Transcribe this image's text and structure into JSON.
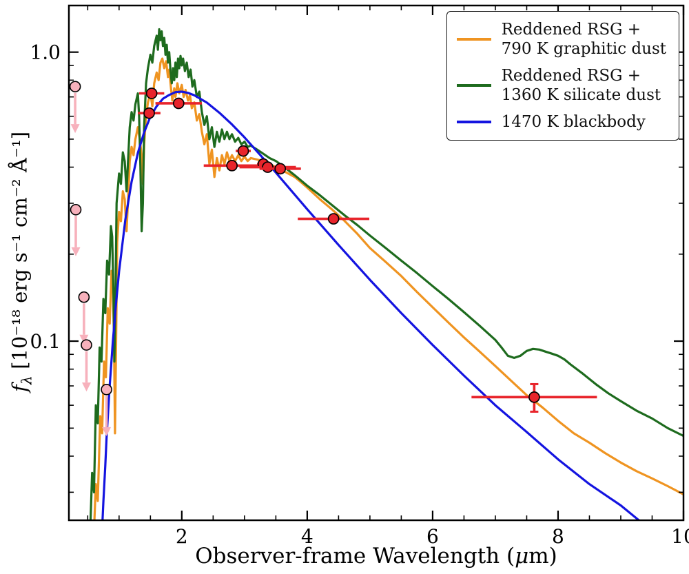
{
  "chart_data": {
    "type": "line",
    "xlabel_parts": {
      "pre": "Observer-frame Wavelength (",
      "mu": "μ",
      "post": "m)"
    },
    "ylabel_parts": {
      "f": "f",
      "sub": "λ",
      "rest": " [10⁻¹⁸ erg s⁻¹ cm⁻² Å⁻¹]"
    },
    "x_range": [
      0.2,
      10
    ],
    "y_range_log": [
      0.024,
      1.45
    ],
    "x_ticks": {
      "major": [
        2,
        4,
        6,
        8,
        10
      ],
      "labels": [
        "2",
        "4",
        "6",
        "8",
        "10"
      ],
      "minor": [
        0.5,
        1,
        1.5,
        2.5,
        3,
        3.5,
        4.5,
        5,
        5.5,
        6.5,
        7,
        7.5,
        8.5,
        9,
        9.5
      ]
    },
    "y_ticks": {
      "major": [
        1.0,
        0.1
      ],
      "labels": [
        "1.0",
        "0.1"
      ],
      "minor": [
        0.03,
        0.04,
        0.05,
        0.06,
        0.07,
        0.08,
        0.09,
        0.2,
        0.3,
        0.4,
        0.5,
        0.6,
        0.7,
        0.8,
        0.9
      ]
    },
    "legend": [
      {
        "label": "Reddened RSG +\n790 K graphitic dust",
        "color": "#ef9421"
      },
      {
        "label": "Reddened RSG +\n1360 K silicate dust",
        "color": "#1e6b1e"
      },
      {
        "label": "1470 K blackbody",
        "color": "#1414e0"
      }
    ],
    "series": [
      {
        "name": "reddened-rsg-790K-graphitic-dust",
        "color": "#ef9421",
        "points": [
          [
            0.6,
            0.022
          ],
          [
            0.63,
            0.032
          ],
          [
            0.66,
            0.028
          ],
          [
            0.7,
            0.055
          ],
          [
            0.73,
            0.048
          ],
          [
            0.76,
            0.085
          ],
          [
            0.79,
            0.075
          ],
          [
            0.82,
            0.13
          ],
          [
            0.85,
            0.115
          ],
          [
            0.88,
            0.175
          ],
          [
            0.9,
            0.16
          ],
          [
            0.92,
            0.1
          ],
          [
            0.935,
            0.048
          ],
          [
            0.95,
            0.09
          ],
          [
            0.97,
            0.22
          ],
          [
            1.0,
            0.28
          ],
          [
            1.03,
            0.26
          ],
          [
            1.06,
            0.33
          ],
          [
            1.09,
            0.31
          ],
          [
            1.12,
            0.24
          ],
          [
            1.14,
            0.3
          ],
          [
            1.17,
            0.42
          ],
          [
            1.2,
            0.47
          ],
          [
            1.23,
            0.44
          ],
          [
            1.26,
            0.5
          ],
          [
            1.3,
            0.55
          ],
          [
            1.33,
            0.5
          ],
          [
            1.36,
            0.44
          ],
          [
            1.38,
            0.35
          ],
          [
            1.4,
            0.48
          ],
          [
            1.43,
            0.6
          ],
          [
            1.46,
            0.67
          ],
          [
            1.5,
            0.72
          ],
          [
            1.53,
            0.65
          ],
          [
            1.56,
            0.78
          ],
          [
            1.6,
            0.85
          ],
          [
            1.63,
            0.8
          ],
          [
            1.66,
            0.92
          ],
          [
            1.69,
            0.95
          ],
          [
            1.72,
            0.88
          ],
          [
            1.75,
            0.93
          ],
          [
            1.78,
            0.82
          ],
          [
            1.8,
            0.87
          ],
          [
            1.83,
            0.74
          ],
          [
            1.85,
            0.68
          ],
          [
            1.88,
            0.75
          ],
          [
            1.9,
            0.7
          ],
          [
            1.93,
            0.78
          ],
          [
            1.96,
            0.72
          ],
          [
            2.0,
            0.77
          ],
          [
            2.03,
            0.7
          ],
          [
            2.06,
            0.74
          ],
          [
            2.1,
            0.68
          ],
          [
            2.13,
            0.71
          ],
          [
            2.16,
            0.64
          ],
          [
            2.2,
            0.67
          ],
          [
            2.24,
            0.58
          ],
          [
            2.28,
            0.61
          ],
          [
            2.32,
            0.53
          ],
          [
            2.36,
            0.48
          ],
          [
            2.4,
            0.52
          ],
          [
            2.44,
            0.41
          ],
          [
            2.48,
            0.46
          ],
          [
            2.52,
            0.37
          ],
          [
            2.56,
            0.43
          ],
          [
            2.6,
            0.39
          ],
          [
            2.64,
            0.44
          ],
          [
            2.68,
            0.41
          ],
          [
            2.72,
            0.45
          ],
          [
            2.76,
            0.42
          ],
          [
            2.8,
            0.44
          ],
          [
            2.85,
            0.42
          ],
          [
            2.9,
            0.44
          ],
          [
            2.95,
            0.42
          ],
          [
            3.0,
            0.435
          ],
          [
            3.05,
            0.42
          ],
          [
            3.1,
            0.43
          ],
          [
            3.2,
            0.425
          ],
          [
            3.3,
            0.42
          ],
          [
            3.4,
            0.41
          ],
          [
            3.5,
            0.4
          ],
          [
            3.6,
            0.39
          ],
          [
            3.7,
            0.38
          ],
          [
            3.8,
            0.37
          ],
          [
            3.9,
            0.355
          ],
          [
            4.0,
            0.34
          ],
          [
            4.2,
            0.31
          ],
          [
            4.4,
            0.285
          ],
          [
            4.6,
            0.26
          ],
          [
            4.8,
            0.235
          ],
          [
            5.0,
            0.21
          ],
          [
            5.25,
            0.188
          ],
          [
            5.5,
            0.168
          ],
          [
            5.75,
            0.148
          ],
          [
            6.0,
            0.131
          ],
          [
            6.25,
            0.116
          ],
          [
            6.5,
            0.103
          ],
          [
            6.75,
            0.092
          ],
          [
            7.0,
            0.082
          ],
          [
            7.25,
            0.073
          ],
          [
            7.5,
            0.065
          ],
          [
            7.75,
            0.059
          ],
          [
            8.0,
            0.053
          ],
          [
            8.25,
            0.048
          ],
          [
            8.5,
            0.0445
          ],
          [
            8.75,
            0.041
          ],
          [
            9.0,
            0.038
          ],
          [
            9.25,
            0.0355
          ],
          [
            9.5,
            0.0335
          ],
          [
            9.75,
            0.0315
          ],
          [
            10.0,
            0.0295
          ]
        ]
      },
      {
        "name": "reddened-rsg-1360K-silicate-dust",
        "color": "#1e6b1e",
        "points": [
          [
            0.54,
            0.022
          ],
          [
            0.57,
            0.035
          ],
          [
            0.6,
            0.03
          ],
          [
            0.63,
            0.06
          ],
          [
            0.66,
            0.052
          ],
          [
            0.69,
            0.095
          ],
          [
            0.72,
            0.085
          ],
          [
            0.75,
            0.14
          ],
          [
            0.78,
            0.125
          ],
          [
            0.81,
            0.19
          ],
          [
            0.84,
            0.17
          ],
          [
            0.87,
            0.25
          ],
          [
            0.89,
            0.23
          ],
          [
            0.91,
            0.15
          ],
          [
            0.925,
            0.085
          ],
          [
            0.94,
            0.13
          ],
          [
            0.96,
            0.3
          ],
          [
            1.0,
            0.38
          ],
          [
            1.03,
            0.35
          ],
          [
            1.06,
            0.45
          ],
          [
            1.09,
            0.42
          ],
          [
            1.12,
            0.33
          ],
          [
            1.14,
            0.41
          ],
          [
            1.17,
            0.55
          ],
          [
            1.2,
            0.62
          ],
          [
            1.23,
            0.58
          ],
          [
            1.26,
            0.66
          ],
          [
            1.3,
            0.72
          ],
          [
            1.32,
            0.6
          ],
          [
            1.34,
            0.4
          ],
          [
            1.36,
            0.24
          ],
          [
            1.38,
            0.3
          ],
          [
            1.4,
            0.55
          ],
          [
            1.43,
            0.78
          ],
          [
            1.46,
            0.88
          ],
          [
            1.5,
            0.98
          ],
          [
            1.53,
            0.92
          ],
          [
            1.56,
            1.05
          ],
          [
            1.6,
            1.14
          ],
          [
            1.62,
            1.02
          ],
          [
            1.64,
            1.2
          ],
          [
            1.66,
            1.1
          ],
          [
            1.68,
            1.18
          ],
          [
            1.7,
            1.05
          ],
          [
            1.72,
            1.12
          ],
          [
            1.74,
            0.98
          ],
          [
            1.76,
            1.06
          ],
          [
            1.78,
            0.92
          ],
          [
            1.8,
            1.0
          ],
          [
            1.82,
            0.86
          ],
          [
            1.84,
            0.78
          ],
          [
            1.86,
            0.88
          ],
          [
            1.88,
            0.8
          ],
          [
            1.9,
            0.92
          ],
          [
            1.92,
            0.82
          ],
          [
            1.94,
            0.95
          ],
          [
            1.96,
            0.88
          ],
          [
            1.98,
            0.97
          ],
          [
            2.0,
            0.9
          ],
          [
            2.02,
            0.95
          ],
          [
            2.05,
            0.86
          ],
          [
            2.08,
            0.92
          ],
          [
            2.11,
            0.82
          ],
          [
            2.14,
            0.87
          ],
          [
            2.17,
            0.76
          ],
          [
            2.2,
            0.8
          ],
          [
            2.24,
            0.7
          ],
          [
            2.28,
            0.73
          ],
          [
            2.32,
            0.62
          ],
          [
            2.36,
            0.56
          ],
          [
            2.4,
            0.6
          ],
          [
            2.44,
            0.5
          ],
          [
            2.48,
            0.55
          ],
          [
            2.52,
            0.47
          ],
          [
            2.56,
            0.53
          ],
          [
            2.6,
            0.49
          ],
          [
            2.64,
            0.54
          ],
          [
            2.68,
            0.5
          ],
          [
            2.72,
            0.53
          ],
          [
            2.76,
            0.5
          ],
          [
            2.8,
            0.52
          ],
          [
            2.85,
            0.49
          ],
          [
            2.9,
            0.505
          ],
          [
            2.95,
            0.48
          ],
          [
            3.0,
            0.49
          ],
          [
            3.05,
            0.47
          ],
          [
            3.1,
            0.475
          ],
          [
            3.2,
            0.46
          ],
          [
            3.3,
            0.445
          ],
          [
            3.4,
            0.43
          ],
          [
            3.5,
            0.42
          ],
          [
            3.6,
            0.405
          ],
          [
            3.7,
            0.39
          ],
          [
            3.8,
            0.375
          ],
          [
            3.9,
            0.36
          ],
          [
            4.0,
            0.345
          ],
          [
            4.2,
            0.32
          ],
          [
            4.4,
            0.295
          ],
          [
            4.6,
            0.272
          ],
          [
            4.8,
            0.252
          ],
          [
            5.0,
            0.232
          ],
          [
            5.25,
            0.21
          ],
          [
            5.5,
            0.19
          ],
          [
            5.75,
            0.172
          ],
          [
            6.0,
            0.155
          ],
          [
            6.25,
            0.14
          ],
          [
            6.5,
            0.126
          ],
          [
            6.75,
            0.113
          ],
          [
            7.0,
            0.101
          ],
          [
            7.1,
            0.095
          ],
          [
            7.2,
            0.089
          ],
          [
            7.3,
            0.0875
          ],
          [
            7.4,
            0.089
          ],
          [
            7.5,
            0.0925
          ],
          [
            7.6,
            0.094
          ],
          [
            7.7,
            0.0935
          ],
          [
            7.8,
            0.092
          ],
          [
            7.9,
            0.0905
          ],
          [
            8.0,
            0.089
          ],
          [
            8.1,
            0.0865
          ],
          [
            8.2,
            0.083
          ],
          [
            8.4,
            0.077
          ],
          [
            8.6,
            0.071
          ],
          [
            8.8,
            0.066
          ],
          [
            9.0,
            0.062
          ],
          [
            9.25,
            0.0575
          ],
          [
            9.5,
            0.054
          ],
          [
            9.75,
            0.05
          ],
          [
            10.0,
            0.047
          ]
        ]
      },
      {
        "name": "1470K-blackbody",
        "color": "#1414e0",
        "points": [
          [
            0.72,
            0.02
          ],
          [
            0.75,
            0.028
          ],
          [
            0.78,
            0.037
          ],
          [
            0.8,
            0.046
          ],
          [
            0.85,
            0.07
          ],
          [
            0.9,
            0.099
          ],
          [
            0.95,
            0.134
          ],
          [
            1.0,
            0.174
          ],
          [
            1.1,
            0.263
          ],
          [
            1.2,
            0.356
          ],
          [
            1.3,
            0.448
          ],
          [
            1.4,
            0.528
          ],
          [
            1.5,
            0.598
          ],
          [
            1.6,
            0.65
          ],
          [
            1.7,
            0.69
          ],
          [
            1.8,
            0.711
          ],
          [
            1.9,
            0.727
          ],
          [
            2.0,
            0.73
          ],
          [
            2.1,
            0.723
          ],
          [
            2.2,
            0.709
          ],
          [
            2.4,
            0.669
          ],
          [
            2.6,
            0.617
          ],
          [
            2.8,
            0.562
          ],
          [
            3.0,
            0.507
          ],
          [
            3.25,
            0.441
          ],
          [
            3.5,
            0.383
          ],
          [
            3.75,
            0.331
          ],
          [
            4.0,
            0.286
          ],
          [
            4.5,
            0.215
          ],
          [
            5.0,
            0.163
          ],
          [
            5.5,
            0.125
          ],
          [
            6.0,
            0.097
          ],
          [
            6.5,
            0.076
          ],
          [
            7.0,
            0.06
          ],
          [
            7.5,
            0.0485
          ],
          [
            8.0,
            0.039
          ],
          [
            8.5,
            0.032
          ],
          [
            9.0,
            0.027
          ],
          [
            9.5,
            0.022
          ]
        ]
      }
    ],
    "photometry": {
      "color": "#e8242b",
      "edge_color": "#000000",
      "points": [
        {
          "x": 1.52,
          "y": 0.72,
          "xerr": 0.2
        },
        {
          "x": 1.48,
          "y": 0.615,
          "xerr": 0.18
        },
        {
          "x": 1.95,
          "y": 0.665,
          "xerr": 0.37
        },
        {
          "x": 2.98,
          "y": 0.455,
          "xerr": 0.12
        },
        {
          "x": 2.8,
          "y": 0.405,
          "xerr": 0.45
        },
        {
          "x": 3.3,
          "y": 0.41,
          "xerr": 0.1
        },
        {
          "x": 3.37,
          "y": 0.4,
          "xerr": 0.45
        },
        {
          "x": 3.57,
          "y": 0.395,
          "xerr": 0.33
        },
        {
          "x": 4.42,
          "y": 0.265,
          "xerr": 0.57
        },
        {
          "x": 7.62,
          "y": 0.064,
          "xerr": 1.0,
          "yerr": 0.007
        }
      ]
    },
    "upper_limits": {
      "color": "#f7b1bc",
      "edge_color": "#000000",
      "arrow_dex": 0.13,
      "points": [
        {
          "x": 0.3,
          "y": 0.76
        },
        {
          "x": 0.31,
          "y": 0.285
        },
        {
          "x": 0.44,
          "y": 0.142
        },
        {
          "x": 0.48,
          "y": 0.097
        },
        {
          "x": 0.8,
          "y": 0.068
        }
      ]
    }
  }
}
